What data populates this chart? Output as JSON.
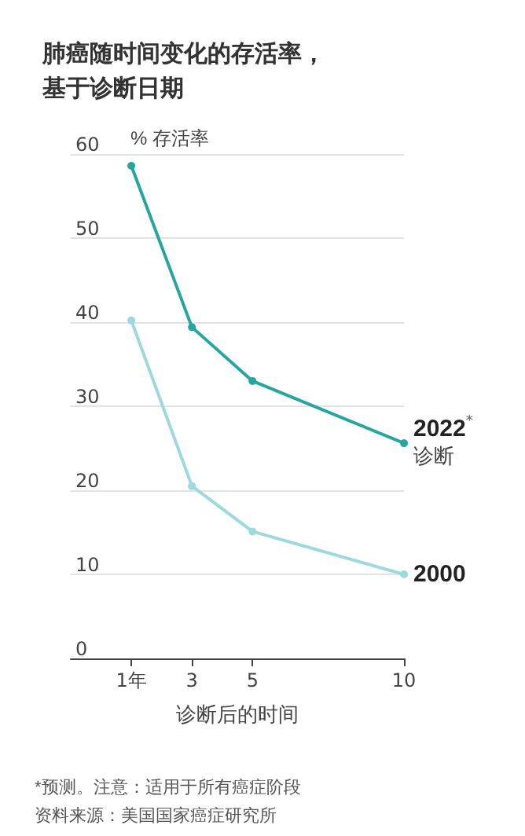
{
  "chart_data": {
    "type": "line",
    "title": "肺癌随时间变化的存活率，基于诊断日期",
    "ylabel": "% 存活率",
    "xlabel": "诊断后的时间",
    "x": [
      1,
      3,
      5,
      10
    ],
    "series": [
      {
        "name": "2022$^{*}$\n诊断",
        "color": "#26a69f",
        "values": [
          58.6,
          39.4,
          33.0,
          25.6
        ]
      },
      {
        "name": "2000",
        "color": "#9dd9dd",
        "values": [
          40.2,
          20.5,
          15.1,
          10.0
        ]
      }
    ],
    "xlim": [
      -1,
      10
    ],
    "xticks": [
      {
        "value": 1,
        "label": "1年"
      },
      3,
      5,
      10
    ],
    "ylim": [
      0,
      60
    ],
    "yticks": [
      0,
      10,
      20,
      30,
      40,
      50,
      60
    ],
    "grid": "y",
    "marker": "circle",
    "line_style": "solid",
    "annotations": [
      "*预测。注意：适用于所有癌症阶段",
      "资料来源：美国国家癌症研究所"
    ]
  }
}
